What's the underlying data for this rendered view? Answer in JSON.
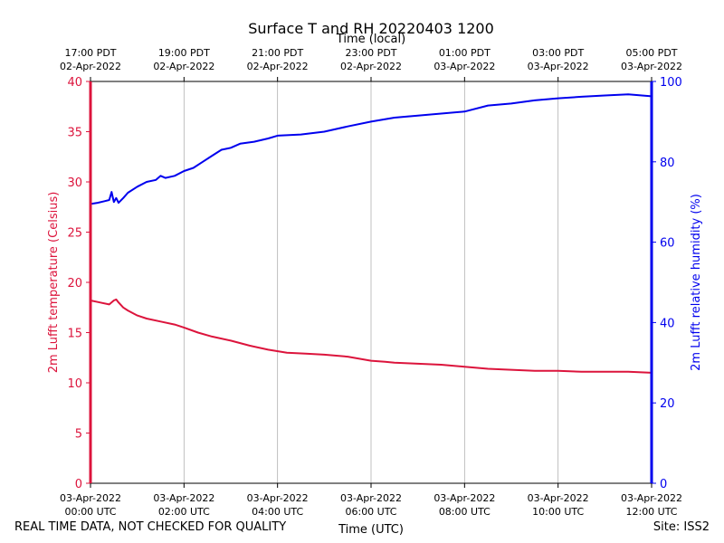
{
  "chart_data": {
    "type": "line",
    "title": "Surface T and RH 20220403 1200",
    "top_axis_label": "Time (local)",
    "xlabel": "Time (UTC)",
    "ylabel_left": "2m Lufft temperature (Celsius)",
    "ylabel_right": "2m Lufft relative humidity (%)",
    "x_unit": "hours since 03-Apr-2022 00:00 UTC",
    "xlim": [
      0,
      12
    ],
    "ylim_left": [
      0,
      40
    ],
    "ylim_right": [
      0,
      100
    ],
    "grid": "vertical",
    "yticks_left": [
      0,
      5,
      10,
      15,
      20,
      25,
      30,
      35,
      40
    ],
    "yticks_right": [
      0,
      20,
      40,
      60,
      80,
      100
    ],
    "xticks_utc": [
      {
        "x": 0,
        "date": "03-Apr-2022",
        "time": "00:00 UTC"
      },
      {
        "x": 2,
        "date": "03-Apr-2022",
        "time": "02:00 UTC"
      },
      {
        "x": 4,
        "date": "03-Apr-2022",
        "time": "04:00 UTC"
      },
      {
        "x": 6,
        "date": "03-Apr-2022",
        "time": "06:00 UTC"
      },
      {
        "x": 8,
        "date": "03-Apr-2022",
        "time": "08:00 UTC"
      },
      {
        "x": 10,
        "date": "03-Apr-2022",
        "time": "10:00 UTC"
      },
      {
        "x": 12,
        "date": "03-Apr-2022",
        "time": "12:00 UTC"
      }
    ],
    "xticks_local": [
      {
        "x": 0,
        "time": "17:00 PDT",
        "date": "02-Apr-2022"
      },
      {
        "x": 2,
        "time": "19:00 PDT",
        "date": "02-Apr-2022"
      },
      {
        "x": 4,
        "time": "21:00 PDT",
        "date": "02-Apr-2022"
      },
      {
        "x": 6,
        "time": "23:00 PDT",
        "date": "02-Apr-2022"
      },
      {
        "x": 8,
        "time": "01:00 PDT",
        "date": "03-Apr-2022"
      },
      {
        "x": 10,
        "time": "03:00 PDT",
        "date": "03-Apr-2022"
      },
      {
        "x": 12,
        "time": "05:00 PDT",
        "date": "03-Apr-2022"
      }
    ],
    "series": [
      {
        "name": "2m Lufft temperature (Celsius)",
        "axis": "left",
        "color": "#dc143c",
        "x": [
          0,
          0.2,
          0.4,
          0.5,
          0.55,
          0.6,
          0.7,
          0.8,
          1.0,
          1.2,
          1.5,
          1.8,
          2.0,
          2.3,
          2.6,
          3.0,
          3.4,
          3.8,
          4.2,
          4.6,
          5.0,
          5.5,
          6.0,
          6.3,
          6.5,
          7.0,
          7.5,
          8.0,
          8.5,
          9.0,
          9.5,
          10.0,
          10.5,
          11.0,
          11.5,
          12.0
        ],
        "values": [
          18.2,
          18.0,
          17.8,
          18.2,
          18.3,
          18.0,
          17.5,
          17.2,
          16.7,
          16.4,
          16.1,
          15.8,
          15.5,
          15.0,
          14.6,
          14.2,
          13.7,
          13.3,
          13.0,
          12.9,
          12.8,
          12.6,
          12.2,
          12.1,
          12.0,
          11.9,
          11.8,
          11.6,
          11.4,
          11.3,
          11.2,
          11.2,
          11.1,
          11.1,
          11.1,
          11.0
        ]
      },
      {
        "name": "2m Lufft relative humidity (%)",
        "axis": "right",
        "color": "#0000ee",
        "x": [
          0,
          0.15,
          0.3,
          0.4,
          0.45,
          0.5,
          0.55,
          0.6,
          0.7,
          0.8,
          1.0,
          1.2,
          1.4,
          1.5,
          1.6,
          1.8,
          2.0,
          2.2,
          2.4,
          2.6,
          2.8,
          3.0,
          3.2,
          3.5,
          3.8,
          4.0,
          4.5,
          5.0,
          5.5,
          6.0,
          6.5,
          7.0,
          7.5,
          8.0,
          8.5,
          9.0,
          9.5,
          10.0,
          10.5,
          11.0,
          11.5,
          12.0
        ],
        "values": [
          69.5,
          69.8,
          70.2,
          70.5,
          72.5,
          70.0,
          71.0,
          69.8,
          71.0,
          72.3,
          73.8,
          75.0,
          75.5,
          76.5,
          76.0,
          76.5,
          77.7,
          78.5,
          80.0,
          81.5,
          83.0,
          83.5,
          84.5,
          85.0,
          85.8,
          86.5,
          86.8,
          87.5,
          88.8,
          90.0,
          91.0,
          91.5,
          92.0,
          92.5,
          94.0,
          94.5,
          95.3,
          95.8,
          96.2,
          96.5,
          96.8,
          96.3
        ]
      }
    ]
  },
  "footer": {
    "disclaimer": "REAL TIME DATA, NOT CHECKED FOR QUALITY",
    "site": "Site: ISS2"
  }
}
